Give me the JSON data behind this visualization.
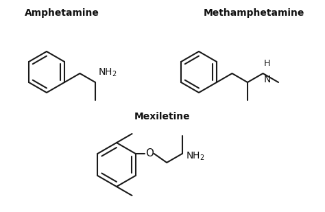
{
  "background_color": "#ffffff",
  "title_amphetamine": "Amphetamine",
  "title_methamphetamine": "Methamphetamine",
  "title_mexiletine": "Mexiletine",
  "title_fontsize": 10,
  "title_fontweight": "bold",
  "line_color": "#1a1a1a",
  "line_width": 1.5,
  "font_color": "#111111",
  "label_fontsize": 10
}
